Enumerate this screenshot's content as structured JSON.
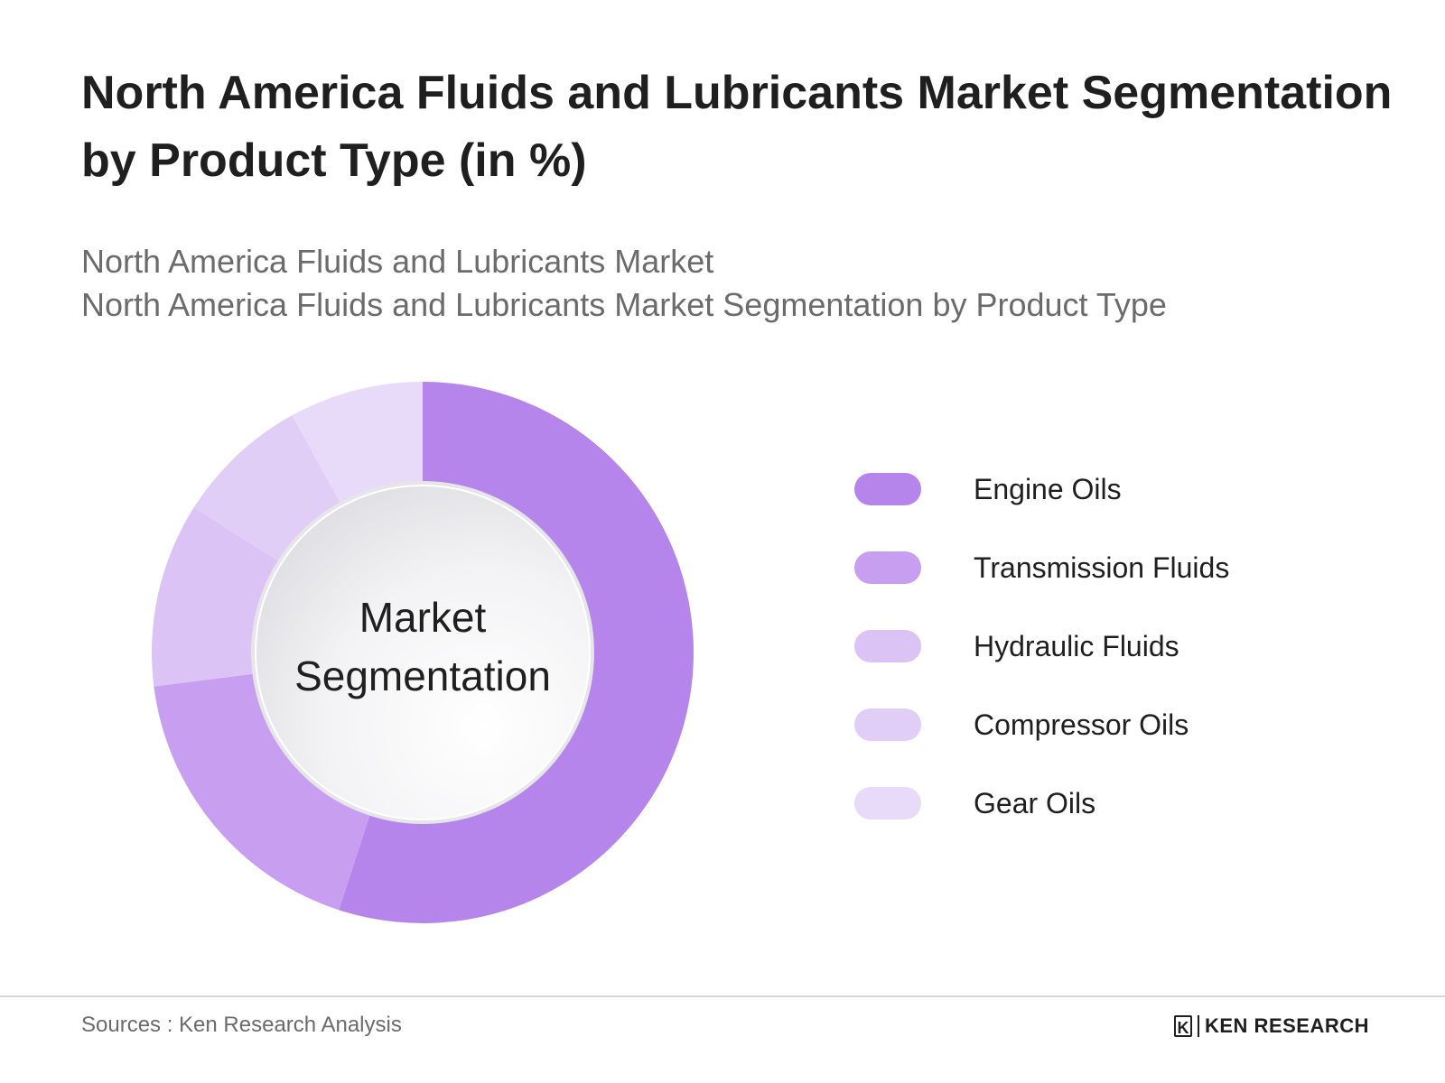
{
  "header": {
    "title_line1": "North America Fluids and Lubricants Market Segmentation",
    "title_line2": "by Product Type  (in %)",
    "subtitle_line1": "North America Fluids and Lubricants Market",
    "subtitle_line2": "North America Fluids and Lubricants Market Segmentation by Product Type"
  },
  "chart_data": {
    "type": "pie",
    "center_label_line1": "Market",
    "center_label_line2": "Segmentation",
    "categories": [
      "Engine Oils",
      "Transmission Fluids",
      "Hydraulic Fluids",
      "Compressor Oils",
      "Gear Oils"
    ],
    "values": [
      55,
      18,
      11,
      8,
      8
    ],
    "colors": [
      "#b585ec",
      "#c79ef0",
      "#dbc3f6",
      "#e1cef7",
      "#e8dbfa"
    ],
    "legend_position": "right"
  },
  "footer": {
    "source": "Sources : Ken Research Analysis",
    "logo_mark": "K",
    "logo_text": "KEN RESEARCH"
  }
}
